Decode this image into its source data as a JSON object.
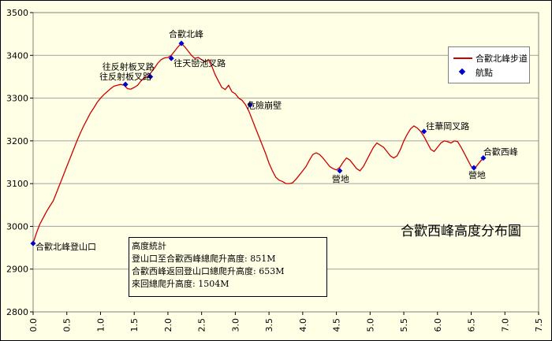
{
  "chart_data": {
    "type": "line",
    "title": "合歡西峰高度分布圖",
    "xlabel": "",
    "ylabel": "",
    "xlim": [
      0.0,
      7.5
    ],
    "ylim": [
      2800,
      3500
    ],
    "x_ticks": [
      "0.0",
      "0.5",
      "1.0",
      "1.5",
      "2.0",
      "2.5",
      "3.0",
      "3.5",
      "4.0",
      "4.5",
      "5.0",
      "5.5",
      "6.0",
      "6.5",
      "7.0",
      "7.5"
    ],
    "y_ticks": [
      "2800",
      "2900",
      "3000",
      "3100",
      "3200",
      "3300",
      "3400",
      "3500"
    ],
    "grid": "horizontal",
    "legend_position": "right",
    "series": [
      {
        "name": "合歡北峰步道",
        "color": "#cc0000",
        "x": [
          0.0,
          0.05,
          0.1,
          0.15,
          0.2,
          0.25,
          0.3,
          0.35,
          0.4,
          0.45,
          0.5,
          0.55,
          0.6,
          0.65,
          0.7,
          0.75,
          0.8,
          0.85,
          0.9,
          0.95,
          1.0,
          1.05,
          1.1,
          1.15,
          1.2,
          1.25,
          1.3,
          1.35,
          1.4,
          1.45,
          1.5,
          1.55,
          1.6,
          1.65,
          1.7,
          1.75,
          1.8,
          1.85,
          1.9,
          1.95,
          2.0,
          2.05,
          2.1,
          2.15,
          2.2,
          2.25,
          2.3,
          2.35,
          2.4,
          2.45,
          2.5,
          2.55,
          2.6,
          2.65,
          2.7,
          2.75,
          2.8,
          2.85,
          2.9,
          2.95,
          3.0,
          3.05,
          3.1,
          3.15,
          3.2,
          3.25,
          3.3,
          3.35,
          3.4,
          3.45,
          3.5,
          3.55,
          3.6,
          3.65,
          3.7,
          3.75,
          3.8,
          3.85,
          3.9,
          3.95,
          4.0,
          4.05,
          4.1,
          4.15,
          4.2,
          4.25,
          4.3,
          4.35,
          4.4,
          4.45,
          4.5,
          4.55,
          4.6,
          4.65,
          4.7,
          4.75,
          4.8,
          4.85,
          4.9,
          4.95,
          5.0,
          5.05,
          5.1,
          5.15,
          5.2,
          5.25,
          5.3,
          5.35,
          5.4,
          5.45,
          5.5,
          5.55,
          5.6,
          5.65,
          5.7,
          5.75,
          5.8,
          5.85,
          5.9,
          5.95,
          6.0,
          6.05,
          6.1,
          6.15,
          6.2,
          6.25,
          6.3,
          6.35,
          6.4,
          6.45,
          6.5,
          6.55,
          6.6,
          6.65,
          6.7
        ],
        "y": [
          2960,
          2985,
          3005,
          3020,
          3035,
          3048,
          3060,
          3080,
          3100,
          3120,
          3140,
          3160,
          3180,
          3200,
          3218,
          3235,
          3250,
          3265,
          3277,
          3290,
          3300,
          3308,
          3315,
          3322,
          3328,
          3330,
          3332,
          3330,
          3322,
          3321,
          3325,
          3330,
          3340,
          3348,
          3350,
          3360,
          3370,
          3382,
          3390,
          3394,
          3395,
          3400,
          3410,
          3420,
          3428,
          3420,
          3410,
          3400,
          3393,
          3395,
          3390,
          3385,
          3390,
          3375,
          3355,
          3340,
          3325,
          3320,
          3330,
          3315,
          3310,
          3300,
          3295,
          3285,
          3270,
          3250,
          3230,
          3210,
          3190,
          3170,
          3148,
          3130,
          3115,
          3108,
          3105,
          3100,
          3100,
          3102,
          3110,
          3120,
          3130,
          3140,
          3155,
          3168,
          3172,
          3168,
          3160,
          3150,
          3140,
          3135,
          3132,
          3138,
          3150,
          3160,
          3155,
          3145,
          3135,
          3130,
          3140,
          3155,
          3170,
          3185,
          3195,
          3190,
          3185,
          3175,
          3165,
          3160,
          3165,
          3180,
          3200,
          3215,
          3228,
          3235,
          3230,
          3222,
          3210,
          3195,
          3180,
          3175,
          3185,
          3195,
          3200,
          3198,
          3195,
          3200,
          3198,
          3185,
          3170,
          3155,
          3140,
          3135,
          3145,
          3155,
          3160
        ]
      },
      {
        "name": "航點",
        "color": "#0000cc",
        "x": [
          0.0,
          1.37,
          1.74,
          2.05,
          2.2,
          3.22,
          4.55,
          5.8,
          6.54,
          6.68
        ],
        "y": [
          2960,
          3332,
          3350,
          3393,
          3428,
          3284,
          3130,
          3222,
          3137,
          3160
        ]
      }
    ],
    "annotations": [
      {
        "text": "合歡北峰登山口",
        "x": 0.0,
        "y": 2960
      },
      {
        "text": "往反射板叉路",
        "x": 1.37,
        "y": 3332
      },
      {
        "text": "往天巒池叉路",
        "x": 2.05,
        "y": 3393
      },
      {
        "text": "往反射板叉路",
        "x": 1.74,
        "y": 3350
      },
      {
        "text": "合歡北峰",
        "x": 2.2,
        "y": 3428
      },
      {
        "text": "危險崩壁",
        "x": 3.22,
        "y": 3284
      },
      {
        "text": "營地",
        "x": 4.55,
        "y": 3130
      },
      {
        "text": "往華岡叉路",
        "x": 5.8,
        "y": 3222
      },
      {
        "text": "營地",
        "x": 6.54,
        "y": 3137
      },
      {
        "text": "合歡西峰",
        "x": 6.68,
        "y": 3160
      }
    ],
    "stats_box": {
      "heading": "高度統計",
      "lines": [
        "登山口至合歡西峰總爬升高度: 851M",
        "合歡西峰返回登山口總爬升高度: 653M",
        "來回總爬升高度: 1504M"
      ]
    }
  }
}
